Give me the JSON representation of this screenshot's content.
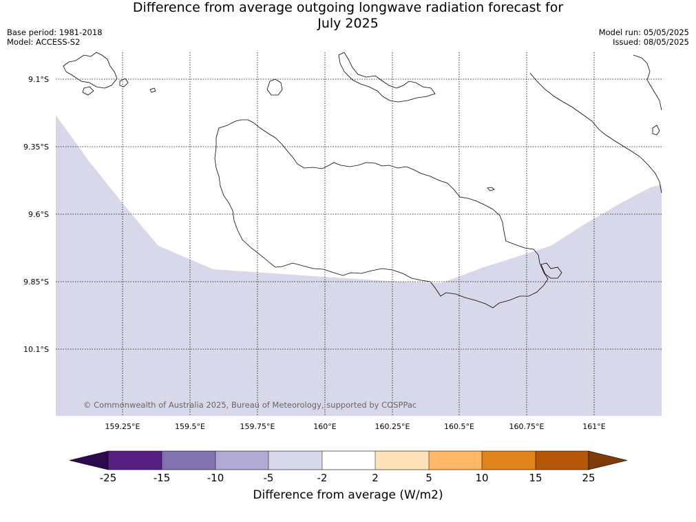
{
  "title_line1": "Difference from average outgoing longwave radiation forecast for",
  "title_line2": "July 2025",
  "base_period": "Base period: 1981-2018",
  "model": "Model: ACCESS-S2",
  "model_run": "Model run: 05/05/2025",
  "issued": "Issued: 08/05/2025",
  "copyright": "© Commonwealth of Australia 2025, Bureau of Meteorology, supported by COSPPac",
  "lat_labels": [
    "9.1°S",
    "9.35°S",
    "9.6°S",
    "9.85°S",
    "10.1°S"
  ],
  "lon_labels": [
    "159.25°E",
    "159.5°E",
    "159.75°E",
    "160°E",
    "160.25°E",
    "160.5°E",
    "160.75°E",
    "161°E"
  ],
  "colorbar": {
    "label": "Difference from average (W/m2)",
    "ticks": [
      "-25",
      "-15",
      "-10",
      "-5",
      "-2",
      "2",
      "5",
      "10",
      "15",
      "25"
    ],
    "colors": [
      "#2d0a4f",
      "#562082",
      "#8173ae",
      "#b0a9d2",
      "#d8d8ea",
      "#ffffff",
      "#ffe1b9",
      "#feb766",
      "#e1811a",
      "#b35606",
      "#7f3b08"
    ]
  },
  "map_colors": {
    "shade": "#d8d8ea",
    "background": "#ffffff",
    "coast": "#000000",
    "grid": "#000000"
  }
}
